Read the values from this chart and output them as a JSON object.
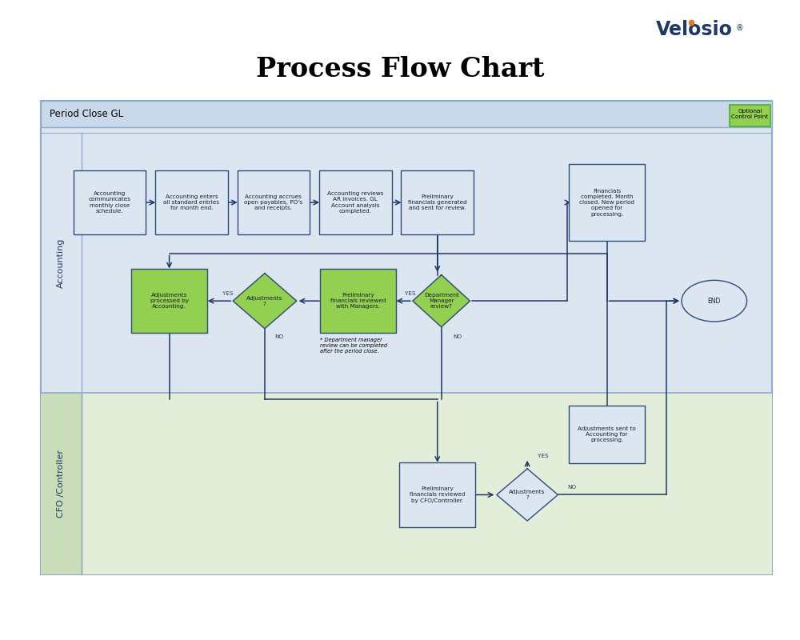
{
  "title": "Process Flow Chart",
  "subtitle": "Period Close GL",
  "optional_label": "Optional\nControl Point",
  "bg_color": "#ffffff",
  "outer_border": "#8eaacc",
  "header_fill": "#c9d9ea",
  "accounting_fill": "#dce6f1",
  "cfo_fill": "#e2eed8",
  "label_col_border": "#8eaacc",
  "box_fill": "#dce6f1",
  "box_border": "#2e4b7e",
  "green_fill": "#92d050",
  "green_border": "#2e4b7e",
  "arrow_color": "#1f3864",
  "text_color": "#1a1a2e",
  "end_fill": "#dce6f1",
  "end_border": "#2e4b7e",
  "velosio_blue": "#1f3864",
  "velosio_orange": "#e87722",
  "opt_fill": "#92d050",
  "opt_border": "#4aab3a"
}
